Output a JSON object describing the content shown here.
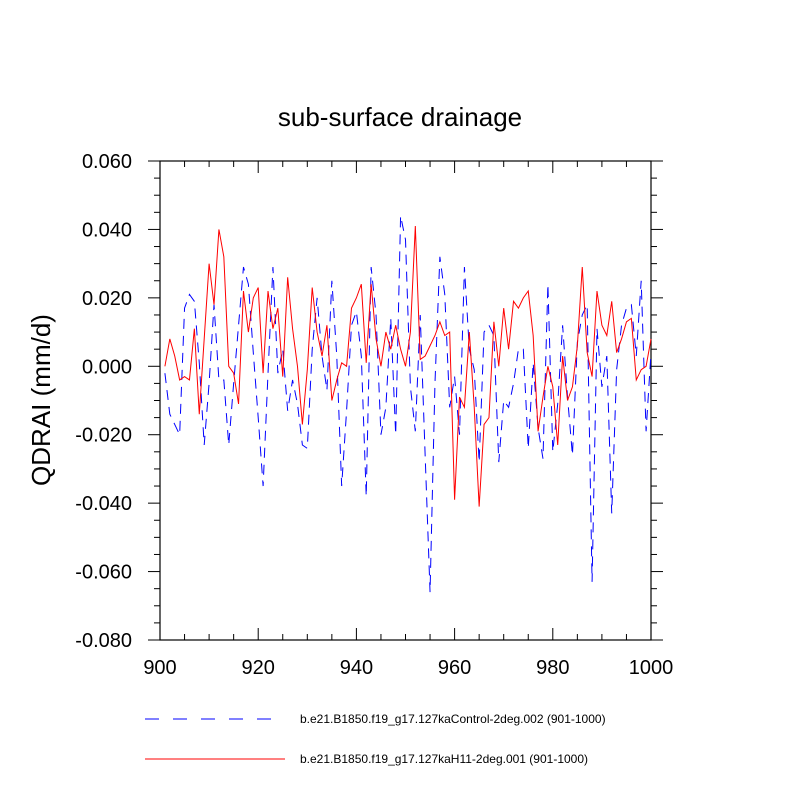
{
  "chart_data": {
    "type": "line",
    "title": "sub-surface drainage",
    "xlabel": "",
    "ylabel": "QDRAI  (mm/d)",
    "xlim": [
      900,
      1000
    ],
    "ylim": [
      -0.08,
      0.06
    ],
    "xticks": [
      900,
      920,
      940,
      960,
      980,
      1000
    ],
    "xtick_labels": [
      "900",
      "920",
      "940",
      "960",
      "980",
      "1000"
    ],
    "yticks": [
      -0.08,
      -0.06,
      -0.04,
      -0.02,
      0.0,
      0.02,
      0.04,
      0.06
    ],
    "ytick_labels": [
      "-0.080",
      "-0.060",
      "-0.040",
      "-0.020",
      "0.000",
      "0.020",
      "0.040",
      "0.060"
    ],
    "x": [
      901,
      902,
      903,
      904,
      905,
      906,
      907,
      908,
      909,
      910,
      911,
      912,
      913,
      914,
      915,
      916,
      917,
      918,
      919,
      920,
      921,
      922,
      923,
      924,
      925,
      926,
      927,
      928,
      929,
      930,
      931,
      932,
      933,
      934,
      935,
      936,
      937,
      938,
      939,
      940,
      941,
      942,
      943,
      944,
      945,
      946,
      947,
      948,
      949,
      950,
      951,
      952,
      953,
      954,
      955,
      956,
      957,
      958,
      959,
      960,
      961,
      962,
      963,
      964,
      965,
      966,
      967,
      968,
      969,
      970,
      971,
      972,
      973,
      974,
      975,
      976,
      977,
      978,
      979,
      980,
      981,
      982,
      983,
      984,
      985,
      986,
      987,
      988,
      989,
      990,
      991,
      992,
      993,
      994,
      995,
      996,
      997,
      998,
      999,
      1000
    ],
    "series": [
      {
        "name": "b.e21.B1850.f19_g17.127kaControl-2deg.002 (901-1000)",
        "color": "#0000ff",
        "style": "dashed",
        "values": [
          -0.002,
          -0.014,
          -0.017,
          -0.02,
          0.017,
          0.021,
          0.019,
          0.001,
          -0.023,
          -0.005,
          0.018,
          -0.004,
          -0.004,
          -0.023,
          -0.005,
          0.012,
          0.029,
          0.024,
          0.004,
          -0.015,
          -0.035,
          -0.002,
          0.029,
          -0.002,
          0.005,
          -0.013,
          -0.004,
          -0.011,
          -0.023,
          -0.024,
          0.005,
          0.02,
          0.003,
          -0.007,
          0.025,
          0.003,
          -0.035,
          -0.013,
          0.012,
          0.016,
          0.003,
          -0.038,
          0.029,
          0.015,
          -0.02,
          -0.012,
          0.014,
          -0.02,
          0.044,
          0.037,
          -0.006,
          -0.019,
          0.015,
          -0.026,
          -0.066,
          -0.005,
          0.032,
          0.021,
          -0.012,
          -0.003,
          -0.02,
          0.029,
          0.005,
          -0.001,
          -0.028,
          0.01,
          0.012,
          0.009,
          -0.028,
          -0.01,
          -0.012,
          -0.005,
          0.005,
          0.005,
          -0.024,
          0.001,
          -0.018,
          -0.027,
          0.024,
          -0.025,
          -0.011,
          0.012,
          -0.009,
          -0.026,
          0.007,
          0.015,
          0.018,
          -0.063,
          0.011,
          -0.006,
          0.003,
          -0.043,
          -0.001,
          0.012,
          0.017,
          0.018,
          0.003,
          0.025,
          -0.019,
          0.004
        ]
      },
      {
        "name": "b.e21.B1850.f19_g17.127kaH11-2deg.001 (901-1000)",
        "color": "#ff0000",
        "style": "solid",
        "values": [
          0.0,
          0.008,
          0.003,
          -0.004,
          -0.003,
          -0.004,
          0.011,
          -0.014,
          0.008,
          0.03,
          0.018,
          0.04,
          0.032,
          0.0,
          -0.002,
          -0.011,
          0.022,
          0.01,
          0.02,
          0.023,
          -0.002,
          0.022,
          0.011,
          0.017,
          -0.003,
          0.026,
          0.011,
          0.0,
          -0.017,
          -0.001,
          0.023,
          0.01,
          0.003,
          0.012,
          -0.01,
          -0.004,
          0.001,
          0.0,
          0.017,
          0.02,
          0.024,
          0.001,
          0.024,
          0.008,
          0.0,
          0.01,
          0.005,
          0.012,
          0.005,
          0.0,
          0.01,
          0.041,
          0.002,
          0.003,
          0.006,
          0.009,
          0.013,
          0.009,
          0.01,
          -0.039,
          -0.009,
          -0.012,
          0.01,
          -0.012,
          -0.041,
          -0.017,
          -0.015,
          0.013,
          0.0,
          0.017,
          0.005,
          0.019,
          0.017,
          0.02,
          0.022,
          0.009,
          -0.019,
          -0.009,
          0.0,
          -0.006,
          -0.023,
          0.003,
          -0.01,
          -0.006,
          0.006,
          0.029,
          0.004,
          -0.003,
          0.022,
          0.012,
          0.009,
          0.019,
          0.004,
          0.008,
          0.013,
          0.014,
          -0.004,
          -0.001,
          0.0,
          0.008
        ]
      }
    ],
    "legend": {
      "placement": "bottom",
      "entries": [
        {
          "label": "b.e21.B1850.f19_g17.127kaControl-2deg.002 (901-1000)",
          "color": "#0000ff",
          "style": "dashed"
        },
        {
          "label": "b.e21.B1850.f19_g17.127kaH11-2deg.001 (901-1000)",
          "color": "#ff0000",
          "style": "solid"
        }
      ]
    }
  }
}
